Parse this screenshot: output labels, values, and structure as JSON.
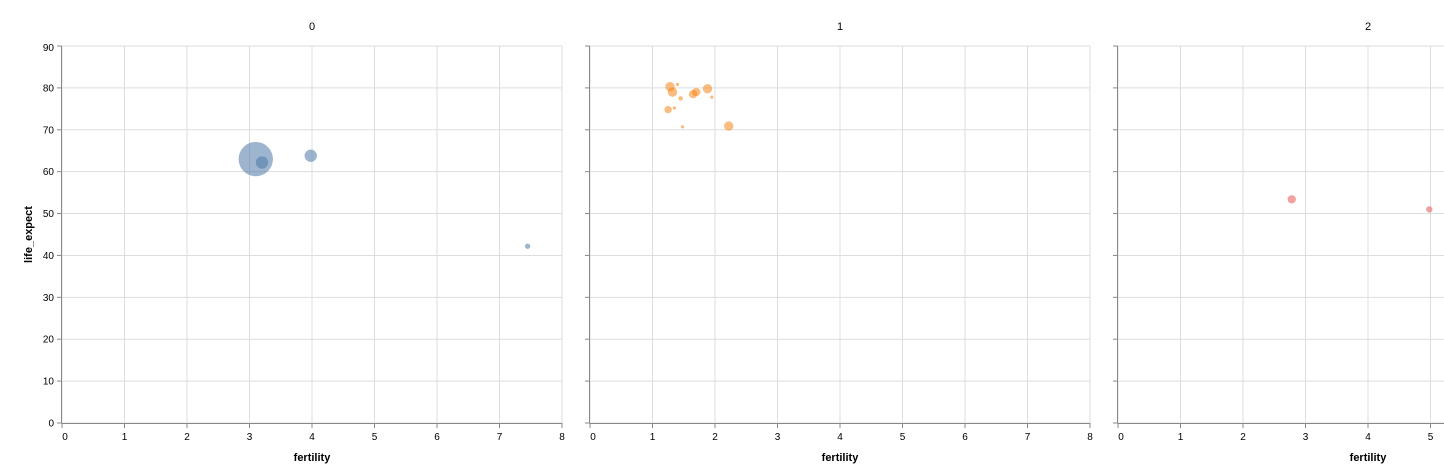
{
  "chart_data": {
    "type": "scatter",
    "facet_field": "cluster",
    "xlabel": "fertility",
    "ylabel": "life_expect",
    "xlim": [
      0,
      8
    ],
    "ylim": [
      0,
      90
    ],
    "x_ticks": [
      0,
      1,
      2,
      3,
      4,
      5,
      6,
      7,
      8
    ],
    "y_ticks": [
      0,
      10,
      20,
      30,
      40,
      50,
      60,
      70,
      80,
      90
    ],
    "grid": true,
    "size_encoding": "population",
    "facets": [
      {
        "label": "0",
        "color": "#4c78a8",
        "points": [
          {
            "x": 3.1,
            "y": 63.0,
            "r": 17
          },
          {
            "x": 3.2,
            "y": 62.2,
            "r": 6
          },
          {
            "x": 3.98,
            "y": 63.8,
            "r": 6
          },
          {
            "x": 7.45,
            "y": 42.2,
            "r": 2.5
          }
        ]
      },
      {
        "label": "1",
        "color": "#f58518",
        "points": [
          {
            "x": 1.28,
            "y": 80.3,
            "r": 4.5
          },
          {
            "x": 1.32,
            "y": 79.0,
            "r": 4.5
          },
          {
            "x": 1.25,
            "y": 74.8,
            "r": 3.5
          },
          {
            "x": 1.35,
            "y": 75.2,
            "r": 1.5
          },
          {
            "x": 1.4,
            "y": 80.8,
            "r": 1.5
          },
          {
            "x": 1.45,
            "y": 77.5,
            "r": 2
          },
          {
            "x": 1.48,
            "y": 70.7,
            "r": 1.5
          },
          {
            "x": 1.65,
            "y": 78.5,
            "r": 4
          },
          {
            "x": 1.7,
            "y": 79.0,
            "r": 4
          },
          {
            "x": 1.88,
            "y": 79.8,
            "r": 4.5
          },
          {
            "x": 1.95,
            "y": 77.8,
            "r": 1.5
          },
          {
            "x": 2.22,
            "y": 70.9,
            "r": 4.5
          }
        ]
      },
      {
        "label": "2",
        "color": "#e45756",
        "points": [
          {
            "x": 2.78,
            "y": 53.4,
            "r": 4
          },
          {
            "x": 4.98,
            "y": 51.0,
            "r": 3
          }
        ]
      }
    ]
  }
}
